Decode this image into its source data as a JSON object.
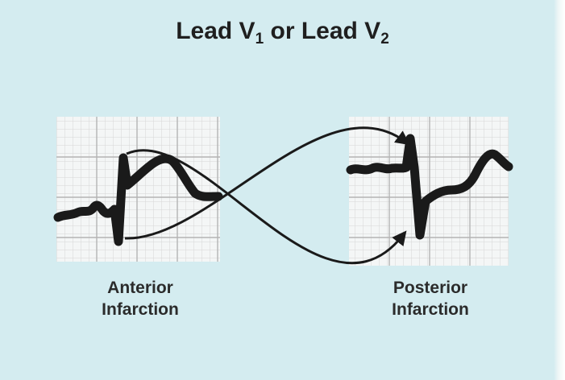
{
  "title": {
    "prefix": "Lead V",
    "sub1": "1",
    "middle": " or Lead V",
    "sub2": "2"
  },
  "panels": [
    {
      "caption_line1": "Anterior",
      "caption_line2": "Infarction"
    },
    {
      "caption_line1": "Posterior",
      "caption_line2": "Infarction"
    }
  ],
  "colors": {
    "background": "#d4ecf0",
    "ecg_paper": "#f4f6f6",
    "grid_minor": "#d6d6d6",
    "grid_major": "#b4b4b4",
    "trace": "#1a1a1a"
  }
}
